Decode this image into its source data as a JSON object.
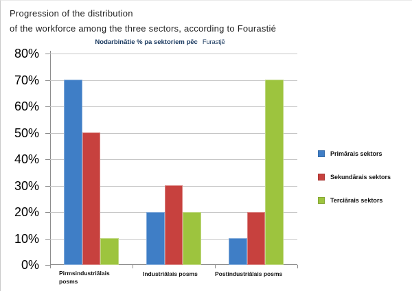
{
  "page": {
    "title_line1": "Progression of the distribution",
    "title_line2": "of the workforce among the three sectors, according to Fourastié"
  },
  "chart_data": {
    "type": "bar",
    "title": "Nodarbinātie % pa sektoriem pēc Furastjē",
    "title_main": "Nodarbinātie % pa sektoriem pēc",
    "title_suffix": "Furastjē",
    "categories": [
      "Pirmsindustriālais posms",
      "Industriālais posms",
      "Postindustriālais posms"
    ],
    "series": [
      {
        "name": "Primārais sektors",
        "color": "#3f7ec6",
        "values": [
          70,
          20,
          10
        ]
      },
      {
        "name": "Sekundārais sektors",
        "color": "#c7413e",
        "values": [
          50,
          30,
          20
        ]
      },
      {
        "name": "Terciārais sektors",
        "color": "#9dc43e",
        "values": [
          10,
          20,
          70
        ]
      }
    ],
    "xlabel": "",
    "ylabel": "",
    "ylim": [
      0,
      80
    ],
    "y_ticks": [
      "80%",
      "70%",
      "60%",
      "50%",
      "40%",
      "30%",
      "20%",
      "10%",
      "0%"
    ],
    "grid": true,
    "legend_position": "right",
    "colors": {
      "subtitle_text": "#17375e",
      "gridline": "#c6c6c6",
      "axis": "#8c8c8c"
    }
  }
}
